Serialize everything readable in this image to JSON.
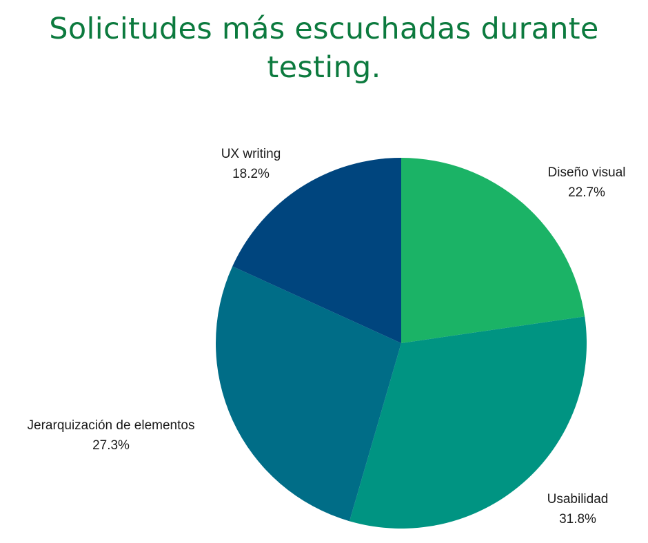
{
  "title_lines": [
    "Solicitudes más escuchadas durante",
    "testing."
  ],
  "chart_data": {
    "type": "pie",
    "title": "Solicitudes más escuchadas durante testing.",
    "start": "top",
    "direction": "clockwise",
    "slices": [
      {
        "label": "Diseño visual",
        "value": 22.7,
        "display": "22.7%",
        "color": "#1bb366"
      },
      {
        "label": "Usabilidad",
        "value": 31.8,
        "display": "31.8%",
        "color": "#009482"
      },
      {
        "label": "Jerarquización de elementos",
        "value": 27.3,
        "display": "27.3%",
        "color": "#006d87"
      },
      {
        "label": "UX writing",
        "value": 18.2,
        "display": "18.2%",
        "color": "#00457e"
      }
    ]
  }
}
